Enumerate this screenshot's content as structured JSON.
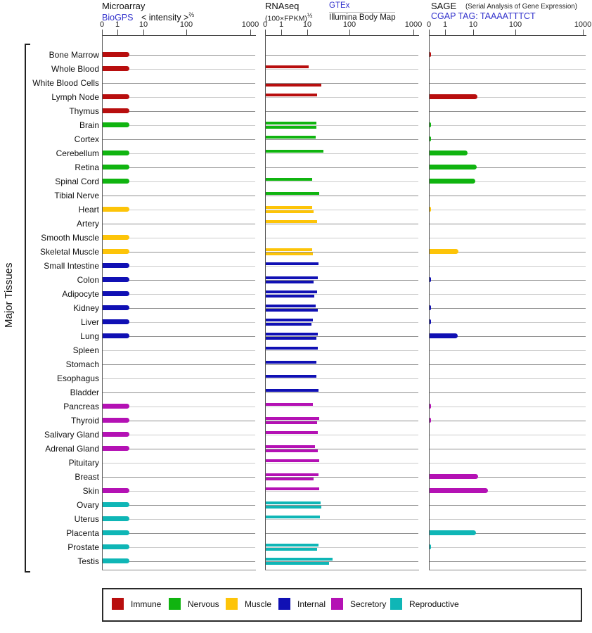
{
  "side_label": "Major Tissues",
  "link_color": "#3333cc",
  "chart_data": {
    "type": "bar",
    "orientation": "horizontal",
    "x_axis": {
      "tick_labels": [
        "0",
        "1",
        "10",
        "100",
        "1000"
      ],
      "tick_values": [
        0,
        1,
        10,
        100,
        1000
      ],
      "scale": "compressed log-like expression scale, shared by all three panels",
      "grid": "one horizontal track line per tissue row"
    },
    "panels": [
      {
        "id": "microarray",
        "title": "Microarray",
        "source_link": "BioGPS",
        "transform_base": "< intensity >",
        "transform_sup": "⅔"
      },
      {
        "id": "rnaseq",
        "title": "RNAseq",
        "unit_base": "(100×FPKM)",
        "unit_sup": "½",
        "source_top": "GTEx",
        "source_bottom": "Illumina Body Map"
      },
      {
        "id": "sage",
        "title": "SAGE",
        "title_note": "(Serial Analysis of Gene Expression)",
        "source_link": "CGAP TAG: TAAAATTTCT"
      }
    ],
    "groups": [
      {
        "name": "Immune",
        "color": "#b80e0e"
      },
      {
        "name": "Nervous",
        "color": "#10b410"
      },
      {
        "name": "Muscle",
        "color": "#fdc408"
      },
      {
        "name": "Internal",
        "color": "#1010b4"
      },
      {
        "name": "Secretory",
        "color": "#b411b4"
      },
      {
        "name": "Reproductive",
        "color": "#0fb6b6"
      }
    ],
    "rows": [
      {
        "tissue": "Bone Marrow",
        "group": "Immune",
        "microarray": 2.7,
        "gtex": 0,
        "illumina": 0,
        "sage": 0.1
      },
      {
        "tissue": "Whole Blood",
        "group": "Immune",
        "microarray": 2.7,
        "gtex": 10.2,
        "illumina": 0,
        "sage": 0
      },
      {
        "tissue": "White Blood Cells",
        "group": "Immune",
        "microarray": 0,
        "gtex": 0,
        "illumina": 20.7,
        "sage": 0
      },
      {
        "tissue": "Lymph Node",
        "group": "Immune",
        "microarray": 2.7,
        "gtex": 16.5,
        "illumina": 0,
        "sage": 12.1
      },
      {
        "tissue": "Thymus",
        "group": "Immune",
        "microarray": 2.7,
        "gtex": 0,
        "illumina": 0,
        "sage": 0
      },
      {
        "tissue": "Brain",
        "group": "Nervous",
        "microarray": 2.7,
        "gtex": 15.8,
        "illumina": 15.8,
        "sage": 0.1
      },
      {
        "tissue": "Cortex",
        "group": "Nervous",
        "microarray": 0,
        "gtex": 15.1,
        "illumina": 0,
        "sage": 0.1
      },
      {
        "tissue": "Cerebellum",
        "group": "Nervous",
        "microarray": 2.7,
        "gtex": 23.3,
        "illumina": 0,
        "sage": 6.1
      },
      {
        "tissue": "Retina",
        "group": "Nervous",
        "microarray": 2.7,
        "gtex": 0,
        "illumina": 0,
        "sage": 11.7
      },
      {
        "tissue": "Spinal Cord",
        "group": "Nervous",
        "microarray": 2.7,
        "gtex": 12.6,
        "illumina": 0,
        "sage": 10.6
      },
      {
        "tissue": "Tibial Nerve",
        "group": "Nervous",
        "microarray": 0,
        "gtex": 18.5,
        "illumina": 0,
        "sage": 0
      },
      {
        "tissue": "Heart",
        "group": "Muscle",
        "microarray": 2.7,
        "gtex": 12.4,
        "illumina": 13.6,
        "sage": 0.1
      },
      {
        "tissue": "Artery",
        "group": "Muscle",
        "microarray": 0,
        "gtex": 16.5,
        "illumina": 0,
        "sage": 0
      },
      {
        "tissue": "Smooth Muscle",
        "group": "Muscle",
        "microarray": 2.7,
        "gtex": 0,
        "illumina": 0,
        "sage": 0
      },
      {
        "tissue": "Skeletal Muscle",
        "group": "Muscle",
        "microarray": 2.7,
        "gtex": 12.7,
        "illumina": 13.2,
        "sage": 2.8
      },
      {
        "tissue": "Small Intestine",
        "group": "Internal",
        "microarray": 2.7,
        "gtex": 18.0,
        "illumina": 0,
        "sage": 0
      },
      {
        "tissue": "Colon",
        "group": "Internal",
        "microarray": 2.7,
        "gtex": 17.1,
        "illumina": 13.6,
        "sage": 0.1
      },
      {
        "tissue": "Adipocyte",
        "group": "Internal",
        "microarray": 2.7,
        "gtex": 16.5,
        "illumina": 14.2,
        "sage": 0
      },
      {
        "tissue": "Kidney",
        "group": "Internal",
        "microarray": 2.7,
        "gtex": 15.1,
        "illumina": 16.9,
        "sage": 0.1
      },
      {
        "tissue": "Liver",
        "group": "Internal",
        "microarray": 2.7,
        "gtex": 12.9,
        "illumina": 12.1,
        "sage": 0.1
      },
      {
        "tissue": "Lung",
        "group": "Internal",
        "microarray": 2.7,
        "gtex": 17.1,
        "illumina": 16.0,
        "sage": 2.6
      },
      {
        "tissue": "Spleen",
        "group": "Internal",
        "microarray": 0,
        "gtex": 17.1,
        "illumina": 0,
        "sage": 0
      },
      {
        "tissue": "Stomach",
        "group": "Internal",
        "microarray": 0,
        "gtex": 15.6,
        "illumina": 0,
        "sage": 0
      },
      {
        "tissue": "Esophagus",
        "group": "Internal",
        "microarray": 0,
        "gtex": 15.6,
        "illumina": 0,
        "sage": 0
      },
      {
        "tissue": "Bladder",
        "group": "Internal",
        "microarray": 0,
        "gtex": 17.8,
        "illumina": 0,
        "sage": 0
      },
      {
        "tissue": "Pancreas",
        "group": "Secretory",
        "microarray": 2.7,
        "gtex": 13.1,
        "illumina": 0,
        "sage": 0.1
      },
      {
        "tissue": "Thyroid",
        "group": "Secretory",
        "microarray": 2.7,
        "gtex": 18.2,
        "illumina": 16.5,
        "sage": 0.1
      },
      {
        "tissue": "Salivary Gland",
        "group": "Secretory",
        "microarray": 2.7,
        "gtex": 17.1,
        "illumina": 0,
        "sage": 0
      },
      {
        "tissue": "Adrenal Gland",
        "group": "Secretory",
        "microarray": 2.7,
        "gtex": 14.5,
        "illumina": 16.9,
        "sage": 0
      },
      {
        "tissue": "Pituitary",
        "group": "Secretory",
        "microarray": 0,
        "gtex": 18.5,
        "illumina": 0,
        "sage": 0
      },
      {
        "tissue": "Breast",
        "group": "Secretory",
        "microarray": 0,
        "gtex": 18.0,
        "illumina": 13.7,
        "sage": 12.7
      },
      {
        "tissue": "Skin",
        "group": "Secretory",
        "microarray": 2.7,
        "gtex": 18.5,
        "illumina": 0,
        "sage": 21.5
      },
      {
        "tissue": "Ovary",
        "group": "Reproductive",
        "microarray": 2.7,
        "gtex": 20.2,
        "illumina": 20.9,
        "sage": 0
      },
      {
        "tissue": "Uterus",
        "group": "Reproductive",
        "microarray": 2.7,
        "gtex": 19.2,
        "illumina": 0,
        "sage": 0
      },
      {
        "tissue": "Placenta",
        "group": "Reproductive",
        "microarray": 2.7,
        "gtex": 0,
        "illumina": 0,
        "sage": 11.2
      },
      {
        "tissue": "Prostate",
        "group": "Reproductive",
        "microarray": 2.7,
        "gtex": 18.0,
        "illumina": 16.5,
        "sage": 0.1
      },
      {
        "tissue": "Testis",
        "group": "Reproductive",
        "microarray": 2.7,
        "gtex": 38.7,
        "illumina": 31.2,
        "sage": 0
      }
    ],
    "legend": [
      "Immune",
      "Nervous",
      "Muscle",
      "Internal",
      "Secretory",
      "Reproductive"
    ]
  }
}
